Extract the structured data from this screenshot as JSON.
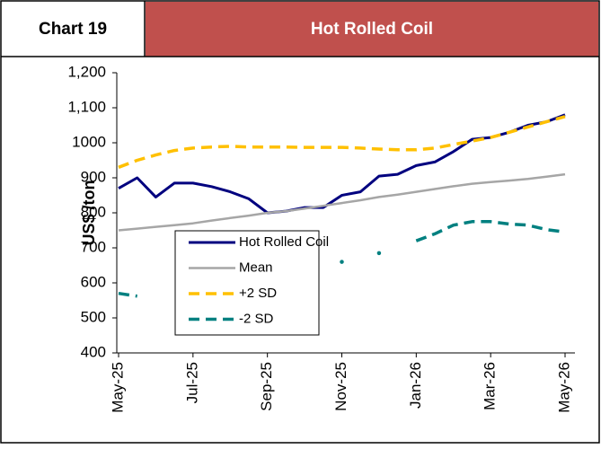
{
  "header": {
    "label": "Chart 19"
  },
  "chart_data": {
    "type": "line",
    "title": "Hot Rolled Coil",
    "y_label": "US$ /ton",
    "categories": [
      "May-25",
      null,
      null,
      null,
      "Jul-25",
      null,
      null,
      null,
      "Sep-25",
      null,
      null,
      null,
      "Nov-25",
      null,
      null,
      null,
      "Jan-26",
      null,
      null,
      null,
      "Mar-26",
      null,
      null,
      null,
      "May-26"
    ],
    "series": [
      {
        "name": "Hot Rolled Coil",
        "color": "#00007f",
        "style": "solid",
        "width": 3,
        "values": [
          870,
          900,
          845,
          885,
          885,
          875,
          860,
          840,
          800,
          805,
          815,
          815,
          850,
          860,
          905,
          910,
          935,
          945,
          975,
          1010,
          1015,
          1030,
          1050,
          1060,
          1080
        ]
      },
      {
        "name": "Mean",
        "color": "#a6a6a6",
        "style": "solid",
        "width": 2.5,
        "values": [
          750,
          755,
          760,
          765,
          770,
          778,
          785,
          792,
          800,
          805,
          812,
          820,
          828,
          836,
          845,
          852,
          860,
          868,
          876,
          883,
          888,
          892,
          897,
          903,
          910
        ]
      },
      {
        "name": "+2 SD",
        "color": "#ffc000",
        "style": "dashed",
        "width": 3.5,
        "values": [
          930,
          950,
          965,
          978,
          985,
          988,
          990,
          988,
          988,
          988,
          987,
          987,
          987,
          985,
          982,
          980,
          980,
          985,
          995,
          1005,
          1015,
          1030,
          1045,
          1060,
          1075
        ]
      },
      {
        "name": "-2 SD",
        "color": "#008080",
        "style": "dashed",
        "width": 3.5,
        "values": [
          570,
          562,
          null,
          null,
          null,
          null,
          null,
          null,
          null,
          null,
          640,
          null,
          660,
          null,
          685,
          null,
          720,
          740,
          765,
          775,
          775,
          768,
          765,
          752,
          745
        ]
      }
    ],
    "ylim": [
      400,
      1200
    ],
    "yticks": [
      400,
      500,
      600,
      700,
      800,
      900,
      1000,
      {
        "value": 1100,
        "label": "1,100"
      },
      {
        "value": 1200,
        "label": "1,200"
      }
    ],
    "legend": "center-left"
  }
}
